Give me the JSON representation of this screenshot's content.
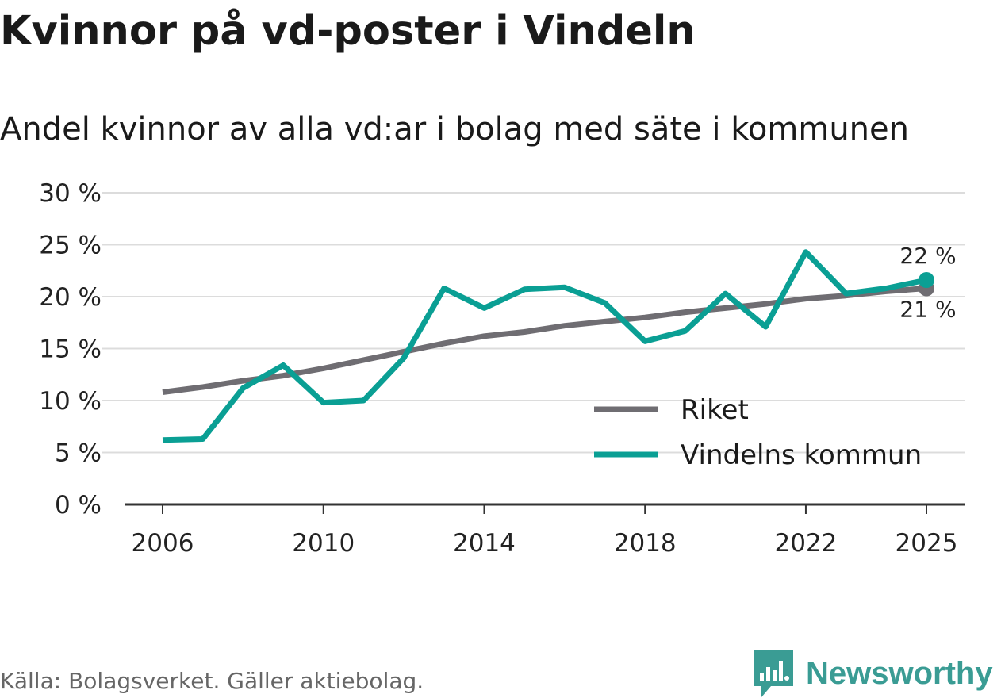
{
  "title": "Kvinnor på vd-poster i Vindeln",
  "subtitle": "Andel kvinnor av alla vd:ar i bolag med säte i kommunen",
  "source": "Källa: Bolagsverket. Gäller aktiebolag.",
  "brand": "Newsworthy",
  "colors": {
    "riket": "#6f6d72",
    "vindeln": "#0a9f94",
    "grid": "#dcdcdc",
    "axis": "#333333",
    "brand": "#3a9c94"
  },
  "chart_data": {
    "type": "line",
    "title": "Andel kvinnor av alla vd:ar i bolag med säte i kommunen",
    "xlabel": "",
    "ylabel": "",
    "ylim": [
      0,
      30
    ],
    "xlim": [
      2006,
      2025
    ],
    "y_ticks": [
      0,
      5,
      10,
      15,
      20,
      25,
      30
    ],
    "y_tick_labels": [
      "0 %",
      "5 %",
      "10 %",
      "15 %",
      "20 %",
      "25 %",
      "30 %"
    ],
    "x_ticks": [
      2006,
      2010,
      2014,
      2018,
      2022,
      2025
    ],
    "x_tick_labels": [
      "2006",
      "2010",
      "2014",
      "2018",
      "2022",
      "2025"
    ],
    "grid": true,
    "legend_position": "bottom-right",
    "x": [
      2006,
      2007,
      2008,
      2009,
      2010,
      2011,
      2012,
      2013,
      2014,
      2015,
      2016,
      2017,
      2018,
      2019,
      2020,
      2021,
      2022,
      2023,
      2024,
      2025
    ],
    "series": [
      {
        "name": "Riket",
        "color": "#6f6d72",
        "values": [
          10.8,
          11.3,
          11.9,
          12.4,
          13.1,
          13.9,
          14.7,
          15.5,
          16.2,
          16.6,
          17.2,
          17.6,
          18.0,
          18.5,
          18.9,
          19.3,
          19.8,
          20.1,
          20.5,
          20.8
        ],
        "end_label": "21 %"
      },
      {
        "name": "Vindelns kommun",
        "color": "#0a9f94",
        "values": [
          6.2,
          6.3,
          11.2,
          13.4,
          9.8,
          10.0,
          14.1,
          20.8,
          18.9,
          20.7,
          20.9,
          19.4,
          15.7,
          16.7,
          20.3,
          17.1,
          24.3,
          20.3,
          20.8,
          21.6
        ],
        "end_label": "22 %"
      }
    ]
  }
}
